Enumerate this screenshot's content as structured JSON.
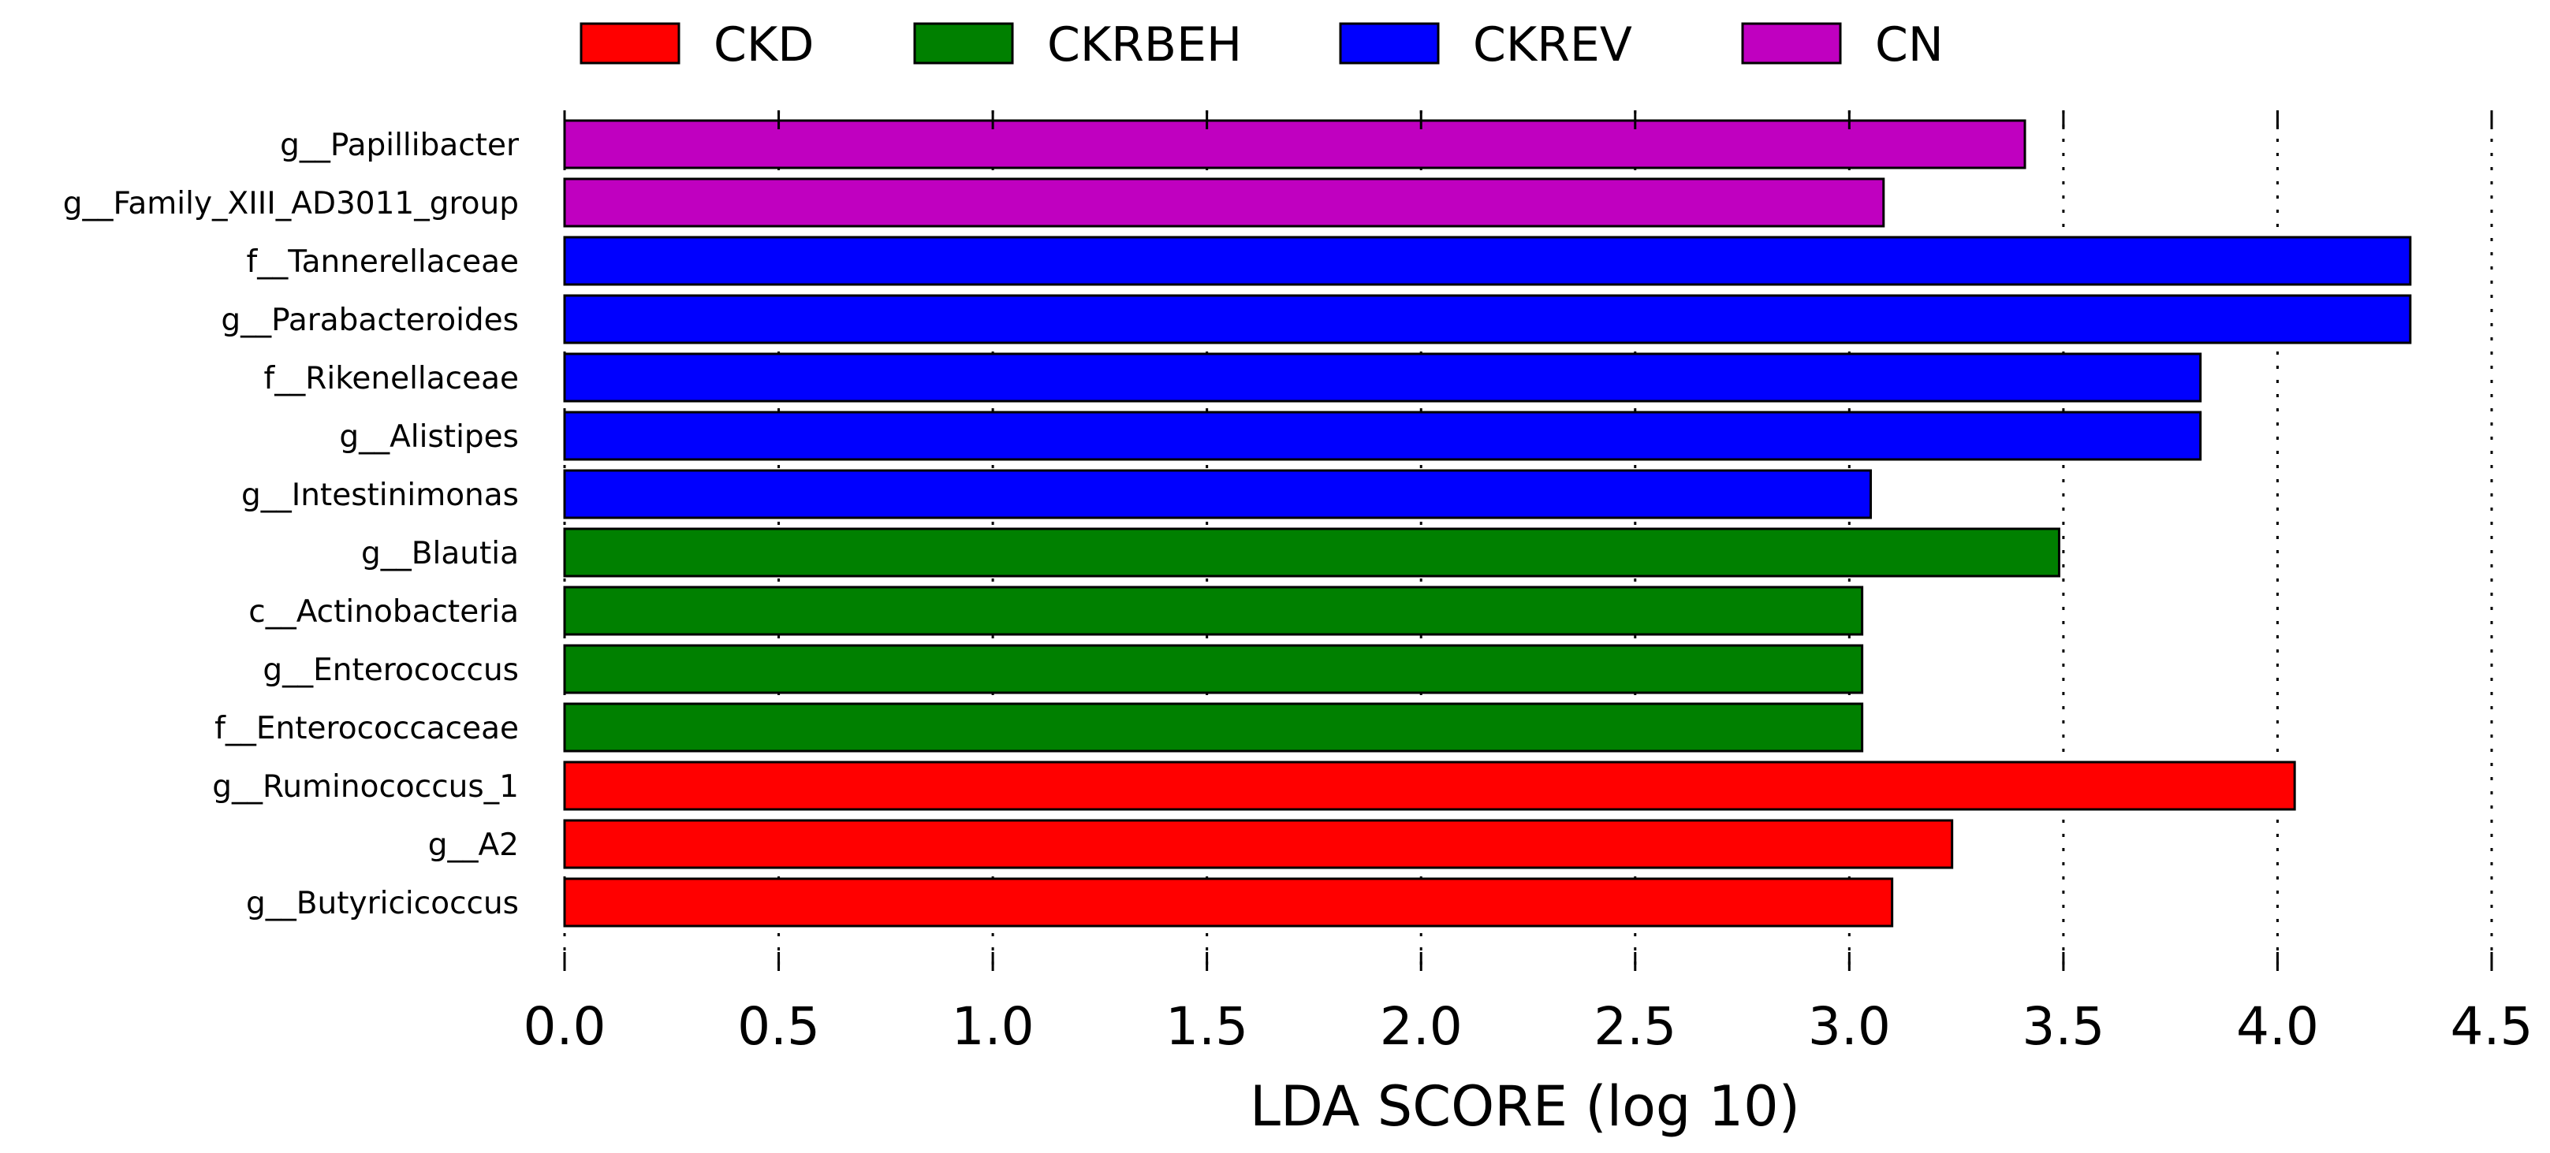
{
  "chart_data": {
    "type": "bar",
    "orientation": "horizontal",
    "xlabel": "LDA SCORE (log 10)",
    "xlim": [
      0.0,
      4.5
    ],
    "xticks": [
      "0.0",
      "0.5",
      "1.0",
      "1.5",
      "2.0",
      "2.5",
      "3.0",
      "3.5",
      "4.0",
      "4.5"
    ],
    "grid": "vertical dotted",
    "legend_position": "top",
    "groups": [
      {
        "name": "CKD",
        "color": "#ff0000"
      },
      {
        "name": "CKRBEH",
        "color": "#008000"
      },
      {
        "name": "CKREV",
        "color": "#0000ff"
      },
      {
        "name": "CN",
        "color": "#c000c0"
      }
    ],
    "bars": [
      {
        "label": "g__Papillibacter",
        "value": 3.41,
        "group": "CN"
      },
      {
        "label": "g__Family_XIII_AD3011_group",
        "value": 3.08,
        "group": "CN"
      },
      {
        "label": "f__Tannerellaceae",
        "value": 4.31,
        "group": "CKREV"
      },
      {
        "label": "g__Parabacteroides",
        "value": 4.31,
        "group": "CKREV"
      },
      {
        "label": "f__Rikenellaceae",
        "value": 3.82,
        "group": "CKREV"
      },
      {
        "label": "g__Alistipes",
        "value": 3.82,
        "group": "CKREV"
      },
      {
        "label": "g__Intestinimonas",
        "value": 3.05,
        "group": "CKREV"
      },
      {
        "label": "g__Blautia",
        "value": 3.49,
        "group": "CKRBEH"
      },
      {
        "label": "c__Actinobacteria",
        "value": 3.03,
        "group": "CKRBEH"
      },
      {
        "label": "g__Enterococcus",
        "value": 3.03,
        "group": "CKRBEH"
      },
      {
        "label": "f__Enterococcaceae",
        "value": 3.03,
        "group": "CKRBEH"
      },
      {
        "label": "g__Ruminococcus_1",
        "value": 4.04,
        "group": "CKD"
      },
      {
        "label": "g__A2",
        "value": 3.24,
        "group": "CKD"
      },
      {
        "label": "g__Butyricicoccus",
        "value": 3.1,
        "group": "CKD"
      }
    ]
  }
}
